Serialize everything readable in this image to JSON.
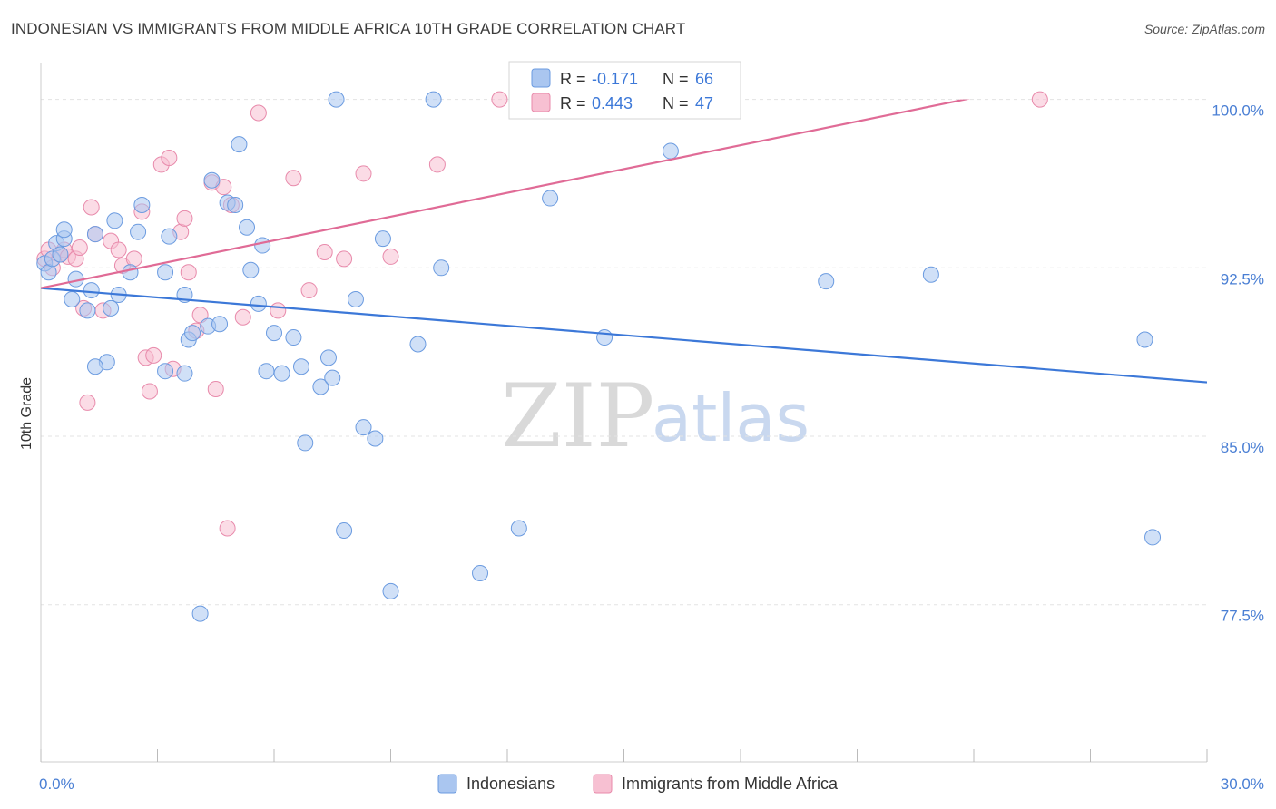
{
  "header": {
    "title": "INDONESIAN VS IMMIGRANTS FROM MIDDLE AFRICA 10TH GRADE CORRELATION CHART",
    "source": "Source: ZipAtlas.com"
  },
  "watermark": {
    "zip": "ZIP",
    "atlas": "atlas"
  },
  "legend": {
    "r_label": "R =",
    "n_label": "N =",
    "rows": [
      {
        "r": "-0.171",
        "n": "66",
        "fill": "#aac6f0",
        "stroke": "#6b9be0"
      },
      {
        "r": "0.443",
        "n": "47",
        "fill": "#f7c0d2",
        "stroke": "#e88aab"
      }
    ]
  },
  "bottom_legend": {
    "items": [
      {
        "label": "Indonesians",
        "fill": "#aac6f0",
        "stroke": "#6b9be0"
      },
      {
        "label": "Immigrants from Middle Africa",
        "fill": "#f7c0d2",
        "stroke": "#e88aab"
      }
    ]
  },
  "chart_data": {
    "type": "scatter",
    "title": "INDONESIAN VS IMMIGRANTS FROM MIDDLE AFRICA 10TH GRADE CORRELATION CHART",
    "xlabel": "",
    "ylabel": "10th Grade",
    "xlim": [
      0,
      30
    ],
    "ylim": [
      70.5,
      101.6
    ],
    "x_tick_labels": [
      "0.0%",
      "30.0%"
    ],
    "y_ticks": [
      77.5,
      85.0,
      92.5,
      100.0
    ],
    "y_tick_labels": [
      "77.5%",
      "85.0%",
      "92.5%",
      "100.0%"
    ],
    "grid": true,
    "colors": {
      "blue": "#3c78d8",
      "pink": "#e06b96"
    },
    "series": [
      {
        "name": "Indonesians",
        "color": "#6b9be0",
        "fill": "#aac6f0",
        "trend": {
          "x": [
            0,
            30
          ],
          "y": [
            91.6,
            87.4
          ]
        },
        "points": [
          [
            0.1,
            92.7
          ],
          [
            0.2,
            92.3
          ],
          [
            0.3,
            92.9
          ],
          [
            0.4,
            93.6
          ],
          [
            0.5,
            93.1
          ],
          [
            0.6,
            93.8
          ],
          [
            0.8,
            91.1
          ],
          [
            0.9,
            92.0
          ],
          [
            0.6,
            94.2
          ],
          [
            1.3,
            91.5
          ],
          [
            1.2,
            90.6
          ],
          [
            1.4,
            94.0
          ],
          [
            1.8,
            90.7
          ],
          [
            2.0,
            91.3
          ],
          [
            1.9,
            94.6
          ],
          [
            2.6,
            95.3
          ],
          [
            2.5,
            94.1
          ],
          [
            3.2,
            92.3
          ],
          [
            3.3,
            93.9
          ],
          [
            3.7,
            91.3
          ],
          [
            3.8,
            89.3
          ],
          [
            3.9,
            89.6
          ],
          [
            3.7,
            87.8
          ],
          [
            4.4,
            96.4
          ],
          [
            4.3,
            89.9
          ],
          [
            4.6,
            90.0
          ],
          [
            4.8,
            95.4
          ],
          [
            5.0,
            95.3
          ],
          [
            5.1,
            98.0
          ],
          [
            5.3,
            94.3
          ],
          [
            5.4,
            92.4
          ],
          [
            5.6,
            90.9
          ],
          [
            6.0,
            89.6
          ],
          [
            5.8,
            87.9
          ],
          [
            6.2,
            87.8
          ],
          [
            6.5,
            89.4
          ],
          [
            6.7,
            88.1
          ],
          [
            6.8,
            84.7
          ],
          [
            7.2,
            87.2
          ],
          [
            7.4,
            88.5
          ],
          [
            7.5,
            87.6
          ],
          [
            7.8,
            80.8
          ],
          [
            8.1,
            91.1
          ],
          [
            8.3,
            85.4
          ],
          [
            8.6,
            84.9
          ],
          [
            8.8,
            93.8
          ],
          [
            9.0,
            78.1
          ],
          [
            9.7,
            89.1
          ],
          [
            10.1,
            100.0
          ],
          [
            10.3,
            92.5
          ],
          [
            11.3,
            78.9
          ],
          [
            12.3,
            80.9
          ],
          [
            13.1,
            95.6
          ],
          [
            14.5,
            89.4
          ],
          [
            16.2,
            97.7
          ],
          [
            20.2,
            91.9
          ],
          [
            22.9,
            92.2
          ],
          [
            28.6,
            80.5
          ],
          [
            28.4,
            89.3
          ],
          [
            7.6,
            100.0
          ],
          [
            5.7,
            93.5
          ],
          [
            2.3,
            92.3
          ],
          [
            1.7,
            88.3
          ],
          [
            1.4,
            88.1
          ],
          [
            4.1,
            77.1
          ],
          [
            3.2,
            87.9
          ]
        ]
      },
      {
        "name": "Immigrants from Middle Africa",
        "color": "#e88aab",
        "fill": "#f7c0d2",
        "trend": {
          "x": [
            0,
            30
          ],
          "y": [
            91.6,
            102.2
          ]
        },
        "points": [
          [
            0.1,
            92.9
          ],
          [
            0.2,
            93.3
          ],
          [
            0.3,
            92.5
          ],
          [
            0.5,
            93.1
          ],
          [
            0.6,
            93.3
          ],
          [
            0.7,
            93.0
          ],
          [
            0.9,
            92.9
          ],
          [
            1.0,
            93.4
          ],
          [
            1.1,
            90.7
          ],
          [
            1.3,
            95.2
          ],
          [
            1.4,
            94.0
          ],
          [
            1.6,
            90.6
          ],
          [
            1.8,
            93.7
          ],
          [
            2.0,
            93.3
          ],
          [
            2.1,
            92.6
          ],
          [
            2.4,
            92.9
          ],
          [
            2.6,
            95.0
          ],
          [
            2.7,
            88.5
          ],
          [
            2.8,
            87.0
          ],
          [
            2.9,
            88.6
          ],
          [
            3.1,
            97.1
          ],
          [
            3.3,
            97.4
          ],
          [
            3.4,
            88.0
          ],
          [
            3.6,
            94.1
          ],
          [
            3.7,
            94.7
          ],
          [
            3.8,
            92.3
          ],
          [
            4.0,
            89.7
          ],
          [
            4.1,
            90.4
          ],
          [
            4.4,
            96.3
          ],
          [
            4.5,
            87.1
          ],
          [
            4.7,
            96.1
          ],
          [
            4.8,
            80.9
          ],
          [
            4.9,
            95.3
          ],
          [
            5.2,
            90.3
          ],
          [
            5.6,
            99.4
          ],
          [
            6.1,
            90.6
          ],
          [
            6.5,
            96.5
          ],
          [
            6.9,
            91.5
          ],
          [
            7.3,
            93.2
          ],
          [
            7.8,
            92.9
          ],
          [
            8.3,
            96.7
          ],
          [
            9.0,
            93.0
          ],
          [
            10.2,
            97.1
          ],
          [
            11.8,
            100.0
          ],
          [
            12.6,
            100.0
          ],
          [
            25.7,
            100.0
          ],
          [
            1.2,
            86.5
          ]
        ]
      }
    ]
  }
}
